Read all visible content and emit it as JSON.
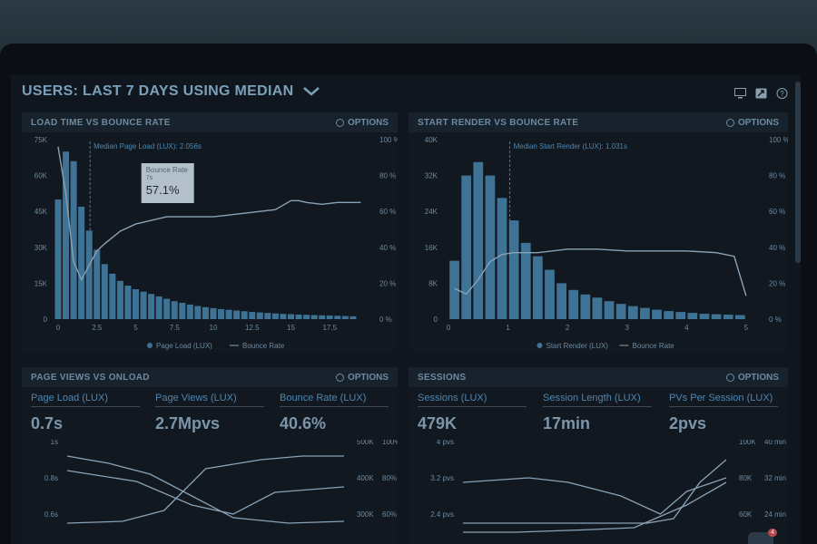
{
  "header": {
    "title_prefix": "USERS:",
    "title_rest": "LAST 7 DAYS USING MEDIAN"
  },
  "colors": {
    "bar": "#3f7396",
    "line": "#8aa2b6",
    "accent": "#5f8aa5",
    "median": "#4a7aa0"
  },
  "toolbar_icons": [
    "monitor-icon",
    "export-icon",
    "help-icon"
  ],
  "panels": {
    "load_time": {
      "title": "LOAD TIME VS BOUNCE RATE",
      "options": "OPTIONS",
      "median": "Median Page Load (LUX): 2.056s",
      "legend_bar": "Page Load (LUX)",
      "legend_line": "Bounce Rate",
      "tooltip": {
        "label": "Bounce Rate",
        "sub": "7s",
        "value": "57.1%"
      }
    },
    "start_render": {
      "title": "START RENDER VS BOUNCE RATE",
      "options": "OPTIONS",
      "median": "Median Start Render (LUX): 1.031s",
      "legend_bar": "Start Render (LUX)",
      "legend_line": "Bounce Rate"
    },
    "page_views": {
      "title": "PAGE VIEWS VS ONLOAD",
      "options": "OPTIONS",
      "stats": [
        {
          "label": "Page Load (LUX)",
          "value": "0.7s"
        },
        {
          "label": "Page Views (LUX)",
          "value": "2.7Mpvs"
        },
        {
          "label": "Bounce Rate (LUX)",
          "value": "40.6%"
        }
      ]
    },
    "sessions": {
      "title": "SESSIONS",
      "options": "OPTIONS",
      "stats": [
        {
          "label": "Sessions (LUX)",
          "value": "479K"
        },
        {
          "label": "Session Length (LUX)",
          "value": "17min"
        },
        {
          "label": "PVs Per Session (LUX)",
          "value": "2pvs"
        }
      ]
    }
  },
  "notification_count": "4",
  "chart_data": [
    {
      "type": "bar",
      "title": "LOAD TIME VS BOUNCE RATE",
      "yticks_left": [
        "75K",
        "60K",
        "45K",
        "30K",
        "15K",
        "0"
      ],
      "yticks_right": [
        "100 %",
        "80 %",
        "60 %",
        "40 %",
        "20 %",
        "0 %"
      ],
      "xticks": [
        "0",
        "2.5",
        "5",
        "7.5",
        "10",
        "12.5",
        "15",
        "17.5"
      ],
      "ylim": [
        0,
        75000
      ],
      "xlim": [
        0,
        20
      ],
      "bar_x": [
        0,
        0.5,
        1,
        1.5,
        2,
        2.5,
        3,
        3.5,
        4,
        4.5,
        5,
        5.5,
        6,
        6.5,
        7,
        7.5,
        8,
        8.5,
        9,
        9.5,
        10,
        10.5,
        11,
        11.5,
        12,
        12.5,
        13,
        13.5,
        14,
        14.5,
        15,
        15.5,
        16,
        16.5,
        17,
        17.5,
        18,
        18.5,
        19
      ],
      "series": [
        {
          "name": "Page Load (LUX)",
          "values": [
            50000,
            70000,
            66000,
            47000,
            37000,
            29000,
            23000,
            19000,
            16000,
            14000,
            12500,
            11500,
            10500,
            9500,
            8500,
            7500,
            6800,
            6100,
            5500,
            5000,
            4600,
            4200,
            3900,
            3600,
            3300,
            3000,
            2800,
            2600,
            2400,
            2200,
            2100,
            1900,
            1800,
            1700,
            1600,
            1500,
            1400,
            1300,
            1200
          ]
        },
        {
          "name": "Bounce Rate",
          "x": [
            0,
            0.5,
            1,
            1.5,
            2,
            2.5,
            3,
            4,
            5,
            6,
            7,
            8,
            9,
            10,
            11,
            12,
            13,
            14,
            15,
            15.5,
            16,
            17,
            18,
            19.5
          ],
          "values": [
            96,
            70,
            32,
            22,
            30,
            38,
            42,
            49,
            53,
            55,
            57,
            57,
            57,
            57,
            58,
            59,
            60,
            61,
            66,
            66,
            65,
            64,
            65,
            65
          ]
        }
      ],
      "vline": 2.056
    },
    {
      "type": "bar",
      "title": "START RENDER VS BOUNCE RATE",
      "yticks_left": [
        "40K",
        "32K",
        "24K",
        "16K",
        "8K",
        "0"
      ],
      "yticks_right": [
        "100 %",
        "80 %",
        "60 %",
        "40 %",
        "20 %",
        "0 %"
      ],
      "xticks": [
        "0",
        "1",
        "2",
        "3",
        "4",
        "5"
      ],
      "ylim": [
        0,
        40000
      ],
      "xlim": [
        0,
        5.2
      ],
      "bar_x": [
        0.1,
        0.3,
        0.5,
        0.7,
        0.9,
        1.1,
        1.3,
        1.5,
        1.7,
        1.9,
        2.1,
        2.3,
        2.5,
        2.7,
        2.9,
        3.1,
        3.3,
        3.5,
        3.7,
        3.9,
        4.1,
        4.3,
        4.5,
        4.7,
        4.9
      ],
      "series": [
        {
          "name": "Start Render (LUX)",
          "values": [
            13000,
            32000,
            35000,
            32000,
            27000,
            22000,
            17000,
            14000,
            11000,
            8000,
            6500,
            5500,
            4800,
            4000,
            3400,
            2900,
            2500,
            2100,
            1800,
            1600,
            1400,
            1200,
            1100,
            1000,
            900
          ]
        },
        {
          "name": "Bounce Rate",
          "x": [
            0.1,
            0.3,
            0.5,
            0.7,
            0.9,
            1.1,
            1.5,
            2,
            2.5,
            3,
            3.5,
            4,
            4.5,
            4.8,
            5
          ],
          "values": [
            17,
            14,
            22,
            32,
            36,
            37,
            37,
            39,
            39,
            38,
            38,
            38,
            37,
            35,
            13
          ]
        }
      ],
      "vline": 1.031
    },
    {
      "type": "line",
      "title": "PAGE VIEWS VS ONLOAD",
      "yticks_left": [
        "1s",
        "0.8s",
        "0.6s"
      ],
      "yticks_right_a": [
        "500K",
        "400K",
        "300K"
      ],
      "yticks_right_b": [
        "100%",
        "80%",
        "60%"
      ],
      "ylim_visible": [
        0.55,
        1.0
      ],
      "series": [
        {
          "x": [
            0,
            0.15,
            0.3,
            0.45,
            0.6,
            0.8,
            1
          ],
          "values": [
            0.92,
            0.88,
            0.82,
            0.7,
            0.58,
            0.55,
            0.56
          ]
        },
        {
          "x": [
            0,
            0.2,
            0.35,
            0.5,
            0.7,
            0.85,
            1
          ],
          "values": [
            0.55,
            0.56,
            0.62,
            0.85,
            0.9,
            0.92,
            0.92
          ]
        },
        {
          "x": [
            0,
            0.25,
            0.45,
            0.6,
            0.75,
            1
          ],
          "values": [
            0.84,
            0.78,
            0.65,
            0.6,
            0.72,
            0.75
          ]
        }
      ]
    },
    {
      "type": "line",
      "title": "SESSIONS",
      "yticks_left": [
        "4 pvs",
        "3.2 pvs",
        "2.4 pvs"
      ],
      "yticks_right_a": [
        "100K",
        "80K",
        "60K"
      ],
      "yticks_right_b": [
        "40 min",
        "32 min",
        "24 min"
      ],
      "ylim_visible": [
        2.2,
        4.0
      ],
      "series": [
        {
          "x": [
            0,
            0.25,
            0.4,
            0.6,
            0.75,
            0.85,
            1
          ],
          "values": [
            3.1,
            3.2,
            3.1,
            2.8,
            2.4,
            2.9,
            3.2
          ]
        },
        {
          "x": [
            0,
            0.3,
            0.55,
            0.7,
            0.8,
            0.9,
            1
          ],
          "values": [
            2.2,
            2.2,
            2.2,
            2.2,
            2.3,
            3.1,
            3.6
          ]
        },
        {
          "x": [
            0,
            0.2,
            0.45,
            0.65,
            0.85,
            1
          ],
          "values": [
            2.0,
            2.0,
            2.05,
            2.1,
            2.6,
            3.1
          ]
        }
      ]
    }
  ]
}
